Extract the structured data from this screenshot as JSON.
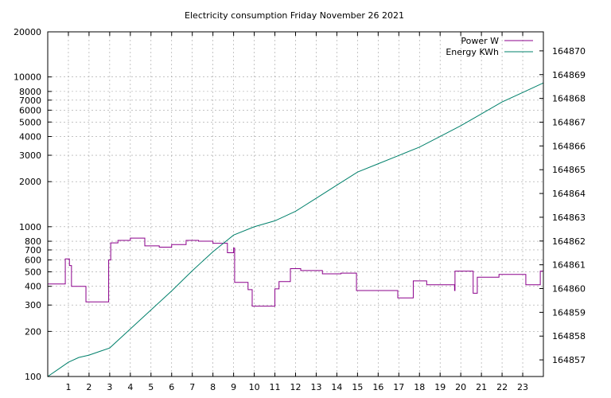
{
  "chart_data": {
    "type": "line",
    "title": "Electricity consumption Friday November 26 2021",
    "grid": true,
    "legend_position": "top-right",
    "x": {
      "range": [
        0,
        24
      ],
      "ticks": [
        1,
        2,
        3,
        4,
        5,
        6,
        7,
        8,
        9,
        10,
        11,
        12,
        13,
        14,
        15,
        16,
        17,
        18,
        19,
        20,
        21,
        22,
        23
      ],
      "tick_labels": [
        "1",
        "2",
        "3",
        "4",
        "5",
        "6",
        "7",
        "8",
        "9",
        "10",
        "11",
        "12",
        "13",
        "14",
        "15",
        "16",
        "17",
        "18",
        "19",
        "20",
        "21",
        "22",
        "23"
      ]
    },
    "y_left": {
      "scale": "log",
      "range": [
        100,
        20000
      ],
      "ticks": [
        100,
        200,
        300,
        400,
        500,
        600,
        700,
        800,
        1000,
        2000,
        3000,
        4000,
        5000,
        6000,
        7000,
        8000,
        10000,
        20000
      ],
      "tick_labels": [
        "100",
        "200",
        "300",
        "400",
        "500",
        "600",
        "700",
        "800",
        "1000",
        "2000",
        "3000",
        "4000",
        "5000",
        "6000",
        "7000",
        "8000",
        "10000",
        "20000"
      ]
    },
    "y_right": {
      "range": [
        164856.3,
        164870.8
      ],
      "ticks": [
        164857,
        164858,
        164859,
        164860,
        164861,
        164862,
        164863,
        164864,
        164865,
        164866,
        164867,
        164868,
        164869,
        164870
      ],
      "tick_labels": [
        "164857",
        "164858",
        "164859",
        "164860",
        "164861",
        "164862",
        "164863",
        "164864",
        "164865",
        "164866",
        "164867",
        "164868",
        "164869",
        "164870"
      ]
    },
    "series": [
      {
        "name": "Power W",
        "color": "#8b008b",
        "axis": "left",
        "step": true,
        "points": [
          [
            0,
            415
          ],
          [
            0.85,
            415
          ],
          [
            0.85,
            610
          ],
          [
            1.05,
            610
          ],
          [
            1.05,
            550
          ],
          [
            1.15,
            550
          ],
          [
            1.15,
            400
          ],
          [
            1.85,
            400
          ],
          [
            1.85,
            315
          ],
          [
            2.95,
            315
          ],
          [
            2.95,
            600
          ],
          [
            3.05,
            600
          ],
          [
            3.05,
            780
          ],
          [
            3.4,
            780
          ],
          [
            3.4,
            810
          ],
          [
            4.0,
            810
          ],
          [
            4.0,
            840
          ],
          [
            4.7,
            840
          ],
          [
            4.7,
            745
          ],
          [
            5.4,
            745
          ],
          [
            5.4,
            730
          ],
          [
            6.0,
            730
          ],
          [
            6.0,
            760
          ],
          [
            6.7,
            760
          ],
          [
            6.7,
            810
          ],
          [
            7.3,
            810
          ],
          [
            7.3,
            800
          ],
          [
            8.0,
            800
          ],
          [
            8.0,
            775
          ],
          [
            8.7,
            775
          ],
          [
            8.7,
            670
          ],
          [
            9.0,
            670
          ],
          [
            9.0,
            720
          ],
          [
            9.05,
            720
          ],
          [
            9.05,
            425
          ],
          [
            9.7,
            425
          ],
          [
            9.7,
            380
          ],
          [
            9.9,
            380
          ],
          [
            9.9,
            295
          ],
          [
            11.0,
            295
          ],
          [
            11.0,
            385
          ],
          [
            11.2,
            385
          ],
          [
            11.2,
            430
          ],
          [
            11.75,
            430
          ],
          [
            11.75,
            525
          ],
          [
            12.25,
            525
          ],
          [
            12.25,
            510
          ],
          [
            13.3,
            510
          ],
          [
            13.3,
            485
          ],
          [
            14.2,
            485
          ],
          [
            14.2,
            490
          ],
          [
            14.95,
            490
          ],
          [
            14.95,
            375
          ],
          [
            16.95,
            375
          ],
          [
            16.95,
            335
          ],
          [
            17.7,
            335
          ],
          [
            17.7,
            435
          ],
          [
            18.35,
            435
          ],
          [
            18.35,
            410
          ],
          [
            19.7,
            410
          ],
          [
            19.7,
            375
          ],
          [
            19.72,
            375
          ],
          [
            19.72,
            505
          ],
          [
            20.6,
            505
          ],
          [
            20.6,
            360
          ],
          [
            20.8,
            360
          ],
          [
            20.8,
            460
          ],
          [
            21.85,
            460
          ],
          [
            21.85,
            480
          ],
          [
            23.15,
            480
          ],
          [
            23.15,
            410
          ],
          [
            23.85,
            410
          ],
          [
            23.85,
            505
          ],
          [
            24.0,
            505
          ]
        ]
      },
      {
        "name": "Energy KWh",
        "color": "#00806b",
        "axis": "right",
        "step": false,
        "points": [
          [
            0,
            164856.3
          ],
          [
            0.5,
            164856.6
          ],
          [
            1.0,
            164856.9
          ],
          [
            1.5,
            164857.1
          ],
          [
            2.0,
            164857.2
          ],
          [
            3.0,
            164857.5
          ],
          [
            4.0,
            164858.3
          ],
          [
            5.0,
            164859.1
          ],
          [
            6.0,
            164859.9
          ],
          [
            7.0,
            164860.75
          ],
          [
            8.0,
            164861.55
          ],
          [
            8.5,
            164861.9
          ],
          [
            9.0,
            164862.25
          ],
          [
            10.0,
            164862.6
          ],
          [
            11.0,
            164862.85
          ],
          [
            12.0,
            164863.25
          ],
          [
            13.0,
            164863.8
          ],
          [
            14.0,
            164864.35
          ],
          [
            15.0,
            164864.9
          ],
          [
            16.0,
            164865.25
          ],
          [
            17.0,
            164865.6
          ],
          [
            18.0,
            164865.95
          ],
          [
            19.0,
            164866.4
          ],
          [
            20.0,
            164866.85
          ],
          [
            21.0,
            164867.35
          ],
          [
            22.0,
            164867.85
          ],
          [
            23.0,
            164868.25
          ],
          [
            24.0,
            164868.65
          ]
        ]
      }
    ]
  }
}
